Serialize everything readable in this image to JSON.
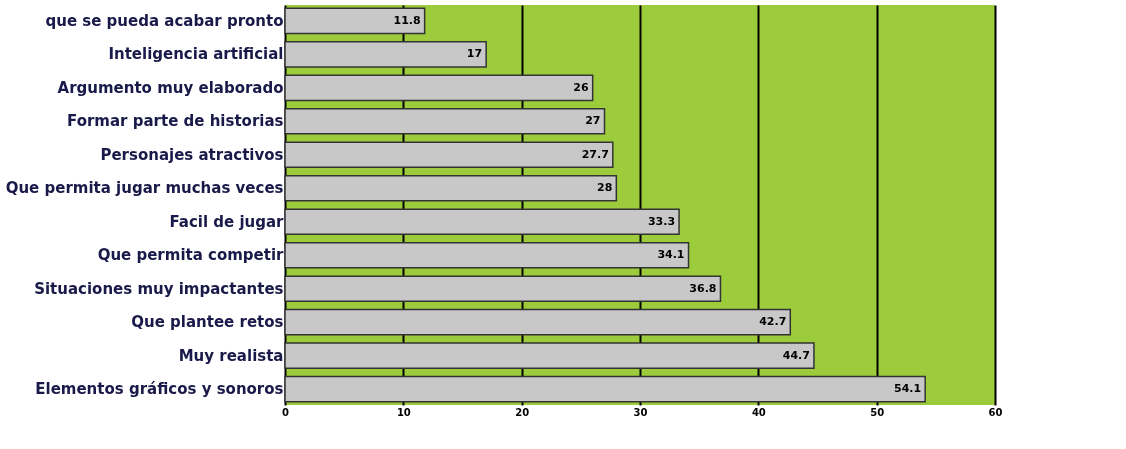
{
  "chart_data": {
    "type": "bar",
    "orientation": "horizontal",
    "categories": [
      "que se pueda acabar pronto",
      "Inteligencia artificial",
      "Argumento muy elaborado",
      "Formar parte de historias",
      "Personajes atractivos",
      "Que permita jugar muchas veces",
      "Facil de jugar",
      "Que permita competir",
      "Situaciones muy impactantes",
      "Que plantee retos",
      "Muy realista",
      "Elementos gráficos y sonoros"
    ],
    "values": [
      11.8,
      17,
      26,
      27,
      27.7,
      28,
      33.3,
      34.1,
      36.8,
      42.7,
      44.7,
      54.1
    ],
    "color": "#c8c8c8",
    "xlim": [
      0,
      60
    ],
    "xticks": [
      0,
      10,
      20,
      30,
      40,
      50,
      60
    ],
    "grid": "x",
    "data_labels": true
  }
}
